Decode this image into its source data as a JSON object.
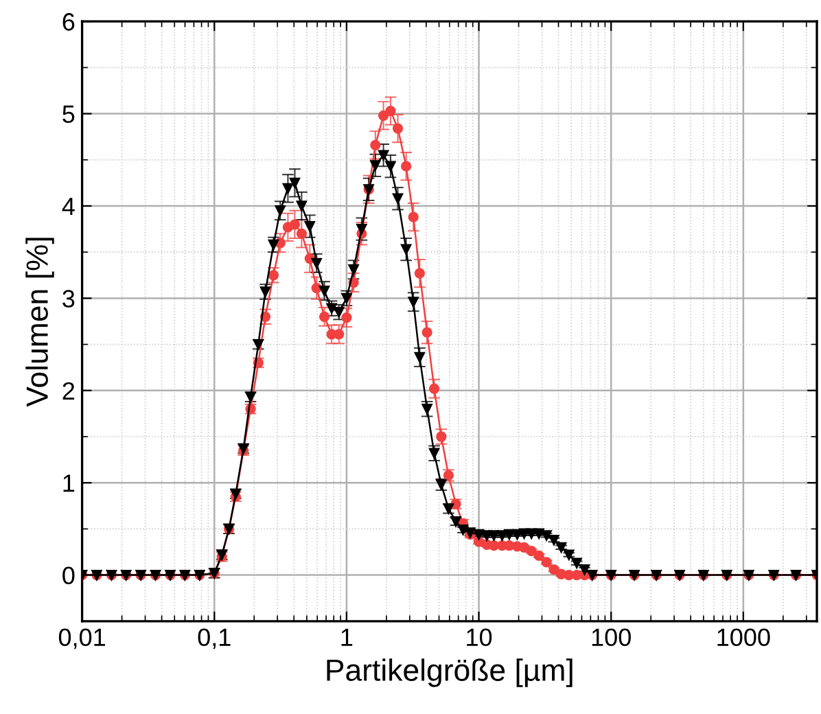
{
  "chart_data": {
    "type": "line",
    "xlabel": "Partikelgröße [µm]",
    "ylabel": "Volumen [%]",
    "log": "x",
    "xlim": [
      0.01,
      3600
    ],
    "ylim": [
      -0.5,
      6
    ],
    "xticks": [
      {
        "value": 0.01,
        "label": "0,01"
      },
      {
        "value": 0.1,
        "label": "0,1"
      },
      1,
      10,
      100,
      1000
    ],
    "yticks": [
      0,
      1,
      2,
      3,
      4,
      5,
      6
    ],
    "grid": true,
    "x": [
      0.01,
      0.0129,
      0.0167,
      0.0215,
      0.0278,
      0.0359,
      0.0464,
      0.0599,
      0.0774,
      0.1,
      0.114,
      0.129,
      0.145,
      0.166,
      0.188,
      0.215,
      0.243,
      0.28,
      0.315,
      0.36,
      0.406,
      0.457,
      0.527,
      0.593,
      0.679,
      0.771,
      0.875,
      1.0,
      1.13,
      1.3,
      1.47,
      1.65,
      1.9,
      2.15,
      2.44,
      2.82,
      3.2,
      3.57,
      4.06,
      4.6,
      5.2,
      5.9,
      6.7,
      7.6,
      8.6,
      10,
      11.5,
      13,
      15,
      17,
      19.5,
      22,
      25,
      28.5,
      32.5,
      37,
      42,
      48,
      55,
      63,
      72,
      100,
      150,
      220,
      330,
      500,
      750,
      1100,
      1700,
      2500,
      3600
    ],
    "series": [
      {
        "color": "#f04040",
        "marker": "circle",
        "values": [
          0,
          0,
          0,
          0,
          0,
          0,
          0,
          0,
          0,
          0.02,
          0.2,
          0.5,
          0.85,
          1.35,
          1.8,
          2.3,
          2.8,
          3.25,
          3.6,
          3.77,
          3.8,
          3.7,
          3.43,
          3.11,
          2.8,
          2.61,
          2.61,
          2.79,
          3.17,
          3.7,
          4.18,
          4.66,
          4.98,
          5.03,
          4.84,
          4.43,
          3.88,
          3.27,
          2.63,
          2.02,
          1.5,
          1.08,
          0.77,
          0.56,
          0.44,
          0.36,
          0.33,
          0.32,
          0.32,
          0.32,
          0.31,
          0.3,
          0.26,
          0.21,
          0.14,
          0.06,
          0.01,
          0,
          0,
          0,
          0,
          0,
          0,
          0,
          0,
          0,
          0,
          0,
          0,
          0,
          0
        ],
        "errors": [
          null,
          null,
          null,
          null,
          null,
          null,
          null,
          null,
          null,
          0.05,
          0.05,
          0.05,
          0.05,
          0.05,
          0.05,
          0.05,
          0.08,
          0.08,
          0.1,
          0.15,
          0.15,
          0.15,
          0.15,
          0.12,
          0.1,
          0.1,
          0.1,
          0.1,
          0.1,
          0.12,
          0.15,
          0.15,
          0.15,
          0.15,
          0.15,
          0.15,
          0.15,
          0.15,
          0.12,
          0.1,
          0.08,
          0.06,
          0.05,
          0.04,
          0.03,
          0.02,
          0.02,
          0.02,
          0.02,
          0.02,
          0.02,
          0.02,
          0.02,
          0.02,
          0.02,
          0.02,
          0.02,
          null,
          null,
          null,
          null,
          null,
          null,
          null,
          null,
          null,
          null,
          null,
          null,
          null,
          null
        ]
      },
      {
        "color": "#000000",
        "marker": "triangle",
        "values": [
          0,
          0,
          0,
          0,
          0,
          0,
          0,
          0,
          0,
          0.02,
          0.22,
          0.5,
          0.88,
          1.37,
          1.93,
          2.5,
          3.07,
          3.58,
          3.95,
          4.19,
          4.25,
          4.0,
          3.78,
          3.38,
          3.08,
          2.89,
          2.85,
          3.0,
          3.31,
          3.75,
          4.18,
          4.44,
          4.55,
          4.43,
          4.08,
          3.53,
          2.96,
          2.36,
          1.8,
          1.32,
          0.98,
          0.72,
          0.58,
          0.49,
          0.46,
          0.44,
          0.43,
          0.43,
          0.43,
          0.44,
          0.44,
          0.45,
          0.45,
          0.45,
          0.43,
          0.38,
          0.3,
          0.22,
          0.13,
          0.06,
          0.0,
          0,
          0,
          0,
          0,
          0,
          0,
          0,
          0,
          0,
          0
        ],
        "errors": [
          null,
          null,
          null,
          null,
          null,
          null,
          null,
          null,
          null,
          0.05,
          0.05,
          0.05,
          0.05,
          0.05,
          0.05,
          0.05,
          0.08,
          0.08,
          0.1,
          0.15,
          0.15,
          0.15,
          0.12,
          0.1,
          0.1,
          0.08,
          0.08,
          0.08,
          0.1,
          0.12,
          0.12,
          0.12,
          0.12,
          0.12,
          0.12,
          0.12,
          0.1,
          0.1,
          0.08,
          0.08,
          0.06,
          0.05,
          0.04,
          0.03,
          0.03,
          0.02,
          0.02,
          0.02,
          0.02,
          0.02,
          0.02,
          0.02,
          0.02,
          0.02,
          0.02,
          0.02,
          0.02,
          0.02,
          0.02,
          0.02,
          null,
          null,
          null,
          null,
          null,
          null,
          null,
          null,
          null,
          null,
          null
        ]
      }
    ]
  }
}
